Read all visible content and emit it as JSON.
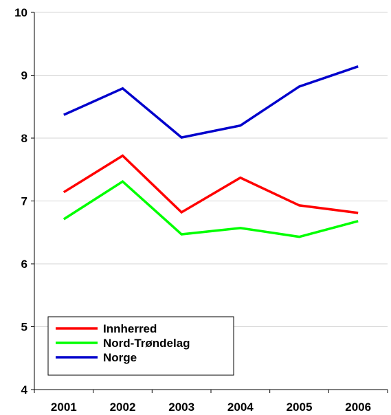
{
  "chart_data": {
    "type": "line",
    "title": "",
    "xlabel": "",
    "ylabel": "",
    "categories": [
      "2001",
      "2002",
      "2003",
      "2004",
      "2005",
      "2006"
    ],
    "ylim": [
      4,
      10
    ],
    "yticks": [
      "4",
      "5",
      "6",
      "7",
      "8",
      "9",
      "10"
    ],
    "grid": true,
    "legend": "bottom-left",
    "series": [
      {
        "name": "Innherred",
        "color": "#ff0000",
        "values": [
          7.14,
          7.72,
          6.82,
          7.37,
          6.93,
          6.81
        ]
      },
      {
        "name": "Nord-Trøndelag",
        "color": "#00ff00",
        "values": [
          6.71,
          7.31,
          6.47,
          6.57,
          6.43,
          6.68
        ]
      },
      {
        "name": "Norge",
        "color": "#0000cc",
        "values": [
          8.37,
          8.79,
          8.01,
          8.2,
          8.82,
          9.14
        ]
      }
    ]
  }
}
